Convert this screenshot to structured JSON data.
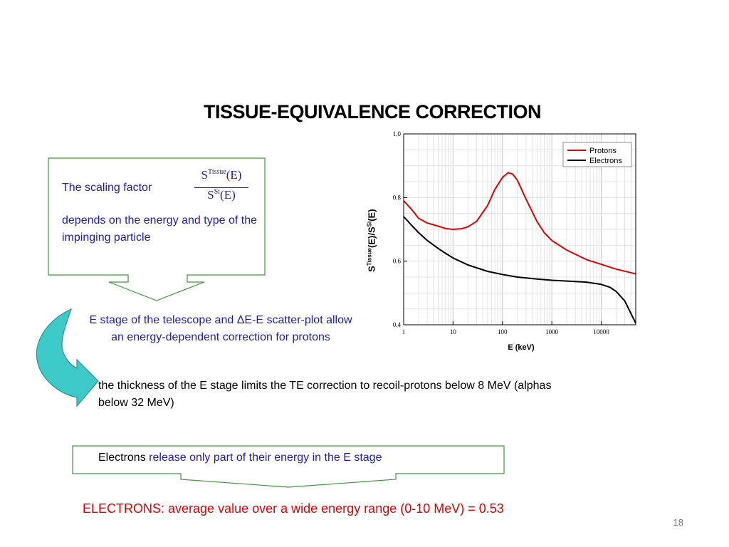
{
  "slide": {
    "title": "TISSUE-EQUIVALENCE CORRECTION",
    "scaling_label": "The scaling factor",
    "fraction": {
      "num_base": "S",
      "num_sup": "Tissue",
      "num_arg": "(E)",
      "den_base": "S",
      "den_sup": "Si",
      "den_arg": "(E)"
    },
    "depends_text": "depends on the energy and type of the impinging particle",
    "estage_text": "E stage of the telescope and ΔE-E scatter-plot allow an energy-dependent correction for protons",
    "thickness_text": "the thickness of the E stage limits the TE correction to recoil-protons below 8 MeV  (alphas below 32 MeV)",
    "electrons_word": "Electrons",
    "electrons_rest": "release only part of their energy in the E stage",
    "electrons_result": "ELECTRONS: average value over a wide energy range (0-10 MeV) = 0.53",
    "page_number": "18"
  },
  "colors": {
    "callout_border": "#3d9a3d",
    "blue_text": "#1c1cb8",
    "red_text": "#e00000",
    "arrow_fill": "#3ec9c9",
    "protons": "#e00000",
    "electrons": "#000000"
  },
  "chart_data": {
    "type": "line",
    "xscale": "log",
    "xlim": [
      1,
      50000
    ],
    "ylim": [
      0.4,
      1.0
    ],
    "xlabel": "E (keV)",
    "ylabel_base": "S",
    "ylabel_sup1": "Tissue",
    "ylabel_mid": "(E)/S",
    "ylabel_sup2": "Si",
    "ylabel_end": "(E)",
    "xticks": [
      {
        "value": 1,
        "label": "1"
      },
      {
        "value": 10,
        "label": "10"
      },
      {
        "value": 100,
        "label": "100"
      },
      {
        "value": 1000,
        "label": "1000"
      },
      {
        "value": 10000,
        "label": "10000"
      }
    ],
    "yticks": [
      {
        "value": 0.4,
        "label": "0.4"
      },
      {
        "value": 0.6,
        "label": "0.6"
      },
      {
        "value": 0.8,
        "label": "0.8"
      },
      {
        "value": 1.0,
        "label": "1.0"
      }
    ],
    "grid": true,
    "legend_position": "top-right",
    "series": [
      {
        "name": "Protons",
        "color": "#e00000",
        "x": [
          1,
          1.5,
          2,
          3,
          5,
          7,
          10,
          15,
          20,
          30,
          50,
          70,
          100,
          130,
          160,
          200,
          300,
          500,
          700,
          1000,
          2000,
          5000,
          10000,
          20000,
          50000
        ],
        "y": [
          0.79,
          0.76,
          0.735,
          0.72,
          0.71,
          0.703,
          0.7,
          0.702,
          0.708,
          0.725,
          0.775,
          0.825,
          0.863,
          0.878,
          0.874,
          0.855,
          0.795,
          0.725,
          0.69,
          0.665,
          0.635,
          0.605,
          0.59,
          0.575,
          0.56
        ]
      },
      {
        "name": "Electrons",
        "color": "#000000",
        "x": [
          1,
          1.5,
          2,
          3,
          5,
          7,
          10,
          20,
          50,
          100,
          200,
          500,
          1000,
          3000,
          5000,
          10000,
          15000,
          20000,
          30000,
          50000
        ],
        "y": [
          0.74,
          0.71,
          0.69,
          0.665,
          0.64,
          0.625,
          0.61,
          0.588,
          0.568,
          0.558,
          0.55,
          0.544,
          0.54,
          0.536,
          0.534,
          0.527,
          0.518,
          0.505,
          0.475,
          0.405
        ]
      }
    ]
  }
}
